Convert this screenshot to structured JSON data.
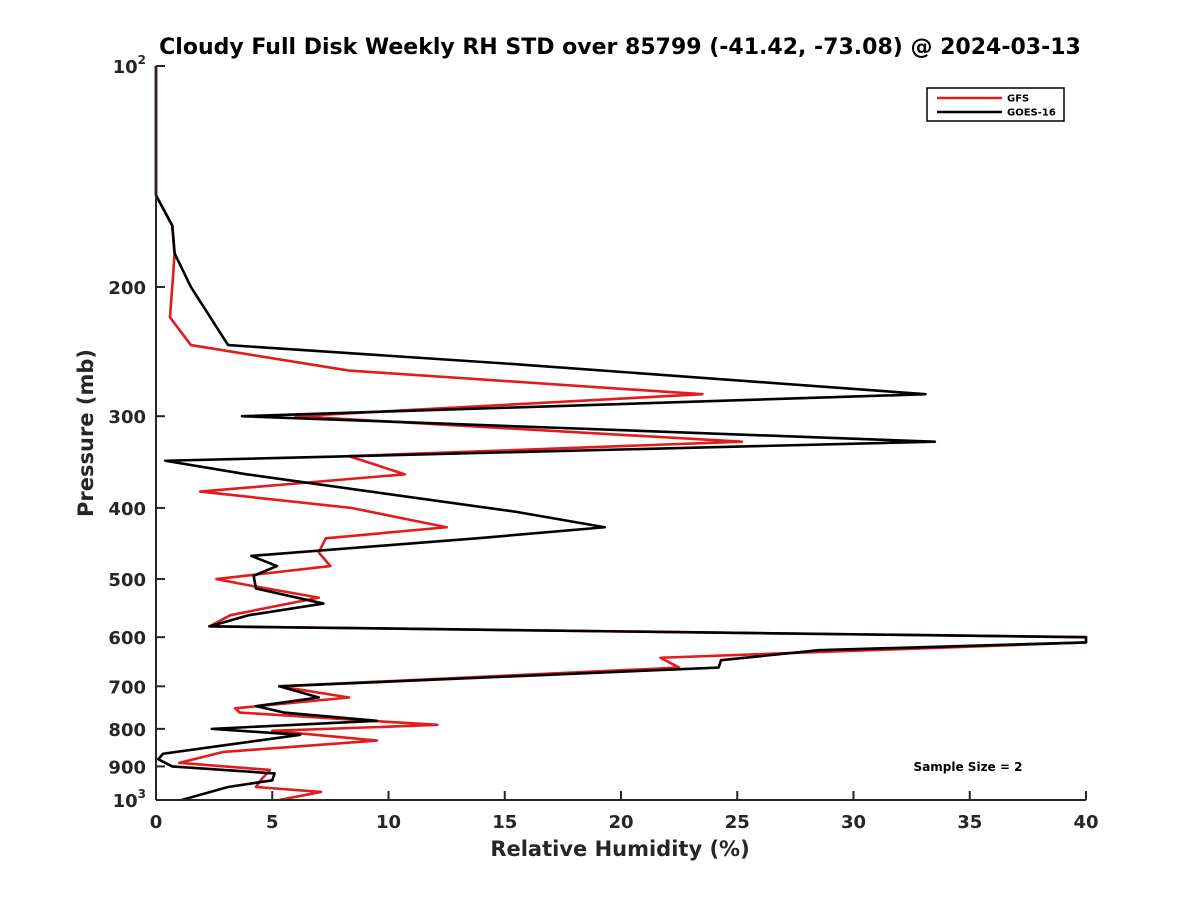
{
  "chart_data": {
    "type": "line",
    "title": "Cloudy Full Disk Weekly RH STD over 85799 (-41.42, -73.08) @ 2024-03-13",
    "xlabel": "Relative Humidity (%)",
    "ylabel": "Pressure (mb)",
    "xlim": [
      0,
      40
    ],
    "ylim": [
      100,
      1000
    ],
    "yscale": "log",
    "y_reversed": true,
    "x_ticks": [
      {
        "value": 0,
        "label": "0"
      },
      {
        "value": 5,
        "label": "5"
      },
      {
        "value": 10,
        "label": "10"
      },
      {
        "value": 15,
        "label": "15"
      },
      {
        "value": 20,
        "label": "20"
      },
      {
        "value": 25,
        "label": "25"
      },
      {
        "value": 30,
        "label": "30"
      },
      {
        "value": 35,
        "label": "35"
      },
      {
        "value": 40,
        "label": "40"
      }
    ],
    "y_ticks": [
      {
        "value": 100,
        "base": "10",
        "sup": "2"
      },
      {
        "value": 200,
        "base": "200",
        "sup": ""
      },
      {
        "value": 300,
        "base": "300",
        "sup": ""
      },
      {
        "value": 400,
        "base": "400",
        "sup": ""
      },
      {
        "value": 500,
        "base": "500",
        "sup": ""
      },
      {
        "value": 600,
        "base": "600",
        "sup": ""
      },
      {
        "value": 700,
        "base": "700",
        "sup": ""
      },
      {
        "value": 800,
        "base": "800",
        "sup": ""
      },
      {
        "value": 900,
        "base": "900",
        "sup": ""
      },
      {
        "value": 1000,
        "base": "10",
        "sup": "3"
      }
    ],
    "grid": false,
    "legend_position": "top-right",
    "annotation": "Sample Size = 2",
    "series": [
      {
        "name": "GFS",
        "color": "#e41a1c",
        "points": [
          [
            0.0,
            100
          ],
          [
            0.0,
            150
          ],
          [
            0.7,
            165
          ],
          [
            0.8,
            180
          ],
          [
            0.7,
            200
          ],
          [
            0.6,
            220
          ],
          [
            1.5,
            240
          ],
          [
            8.3,
            260
          ],
          [
            23.5,
            280
          ],
          [
            6.0,
            300
          ],
          [
            25.2,
            325
          ],
          [
            8.3,
            340
          ],
          [
            10.7,
            360
          ],
          [
            1.9,
            380
          ],
          [
            8.4,
            400
          ],
          [
            12.5,
            425
          ],
          [
            7.3,
            440
          ],
          [
            7.0,
            460
          ],
          [
            7.5,
            480
          ],
          [
            2.6,
            500
          ],
          [
            4.0,
            510
          ],
          [
            7.0,
            530
          ],
          [
            3.2,
            560
          ],
          [
            2.3,
            580
          ],
          [
            40.0,
            600
          ],
          [
            40.0,
            610
          ],
          [
            21.7,
            640
          ],
          [
            22.5,
            660
          ],
          [
            5.3,
            700
          ],
          [
            8.3,
            725
          ],
          [
            3.4,
            750
          ],
          [
            3.6,
            760
          ],
          [
            7.8,
            775
          ],
          [
            12.1,
            790
          ],
          [
            5.0,
            805
          ],
          [
            9.5,
            830
          ],
          [
            2.9,
            860
          ],
          [
            1.0,
            890
          ],
          [
            4.9,
            910
          ],
          [
            4.5,
            940
          ],
          [
            4.3,
            960
          ],
          [
            7.1,
            975
          ],
          [
            5.3,
            1000
          ]
        ]
      },
      {
        "name": "GOES-16",
        "color": "#000000",
        "points": [
          [
            0.0,
            100
          ],
          [
            0.0,
            150
          ],
          [
            0.7,
            165
          ],
          [
            0.8,
            180
          ],
          [
            1.5,
            200
          ],
          [
            3.1,
            240
          ],
          [
            15.6,
            255
          ],
          [
            33.1,
            280
          ],
          [
            3.7,
            300
          ],
          [
            33.5,
            325
          ],
          [
            0.4,
            345
          ],
          [
            3.9,
            360
          ],
          [
            15.5,
            405
          ],
          [
            19.3,
            425
          ],
          [
            13.8,
            440
          ],
          [
            4.1,
            465
          ],
          [
            5.2,
            480
          ],
          [
            4.2,
            495
          ],
          [
            4.3,
            515
          ],
          [
            7.2,
            540
          ],
          [
            4.0,
            560
          ],
          [
            2.3,
            580
          ],
          [
            40.0,
            600
          ],
          [
            40.0,
            610
          ],
          [
            28.5,
            625
          ],
          [
            24.3,
            645
          ],
          [
            24.2,
            660
          ],
          [
            5.3,
            700
          ],
          [
            7.0,
            725
          ],
          [
            4.3,
            745
          ],
          [
            5.5,
            760
          ],
          [
            9.5,
            780
          ],
          [
            2.4,
            800
          ],
          [
            6.2,
            815
          ],
          [
            3.2,
            840
          ],
          [
            0.3,
            865
          ],
          [
            0.1,
            880
          ],
          [
            0.7,
            900
          ],
          [
            5.1,
            920
          ],
          [
            5.0,
            940
          ],
          [
            3.1,
            960
          ],
          [
            1.1,
            1000
          ]
        ]
      }
    ]
  }
}
